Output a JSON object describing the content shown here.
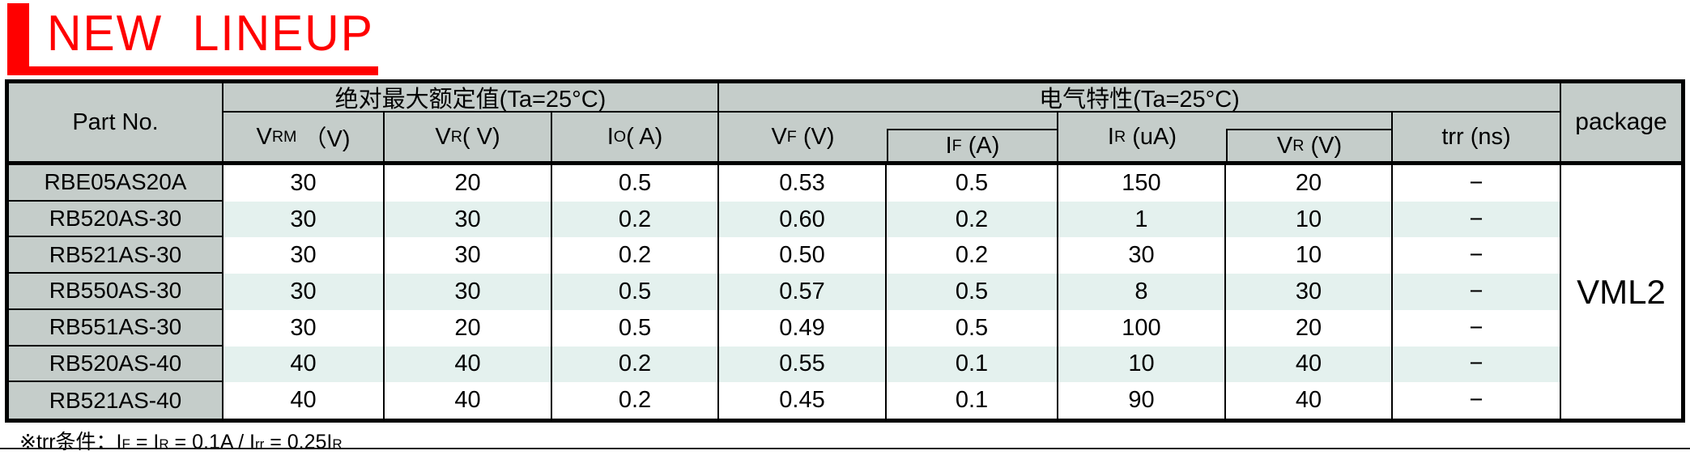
{
  "title": {
    "text": "NEW  LINEUP"
  },
  "table": {
    "part_no_label": "Part No.",
    "group_headers": {
      "abs_max": "绝对最大额定值(Ta=25°C)",
      "elec": "电气特性(Ta=25°C)"
    },
    "package_label": "package",
    "package_value": "VML2",
    "columns": [
      {
        "base": "V",
        "sub": "RM",
        "unit": " （V)"
      },
      {
        "base": "V",
        "sub": "R",
        "unit": "( V)"
      },
      {
        "base": "I",
        "sub": "O",
        "unit": "( A)"
      },
      {
        "base": "V",
        "sub": "F",
        "unit": " (V)"
      },
      {
        "base": "I",
        "sub": "F",
        "unit": " (A)"
      },
      {
        "base": "I",
        "sub": "R",
        "unit": " (uA)"
      },
      {
        "base": "V",
        "sub": "R",
        "unit": " (V)"
      },
      {
        "base": "trr",
        "sub": "",
        "unit": " (ns)"
      }
    ],
    "rows": [
      {
        "part": "RBE05AS20A",
        "vrm": "30",
        "vr": "20",
        "io": "0.5",
        "vf": "0.53",
        "if": "0.5",
        "ir": "150",
        "vr2": "20",
        "trr": "−"
      },
      {
        "part": "RB520AS-30",
        "vrm": "30",
        "vr": "30",
        "io": "0.2",
        "vf": "0.60",
        "if": "0.2",
        "ir": "1",
        "vr2": "10",
        "trr": "−"
      },
      {
        "part": "RB521AS-30",
        "vrm": "30",
        "vr": "30",
        "io": "0.2",
        "vf": "0.50",
        "if": "0.2",
        "ir": "30",
        "vr2": "10",
        "trr": "−"
      },
      {
        "part": "RB550AS-30",
        "vrm": "30",
        "vr": "30",
        "io": "0.5",
        "vf": "0.57",
        "if": "0.5",
        "ir": "8",
        "vr2": "30",
        "trr": "−"
      },
      {
        "part": "RB551AS-30",
        "vrm": "30",
        "vr": "20",
        "io": "0.5",
        "vf": "0.49",
        "if": "0.5",
        "ir": "100",
        "vr2": "20",
        "trr": "−"
      },
      {
        "part": "RB520AS-40",
        "vrm": "40",
        "vr": "40",
        "io": "0.2",
        "vf": "0.55",
        "if": "0.1",
        "ir": "10",
        "vr2": "40",
        "trr": "−"
      },
      {
        "part": "RB521AS-40",
        "vrm": "40",
        "vr": "40",
        "io": "0.2",
        "vf": "0.45",
        "if": "0.1",
        "ir": "90",
        "vr2": "40",
        "trr": "−"
      }
    ],
    "banded_rows": [
      1,
      3,
      5
    ]
  },
  "footnote": {
    "segments": [
      {
        "text": "※trr条件：I",
        "sub": false
      },
      {
        "text": "F",
        "sub": true
      },
      {
        "text": " = I",
        "sub": false
      },
      {
        "text": "R",
        "sub": true
      },
      {
        "text": " = 0.1A / I",
        "sub": false
      },
      {
        "text": "rr",
        "sub": true
      },
      {
        "text": " = 0.25I",
        "sub": false
      },
      {
        "text": "R",
        "sub": true
      }
    ]
  },
  "colors": {
    "accent_red": "#ff0000",
    "header_gray": "#c5cdca",
    "band_mint": "#e4f1ee",
    "border_black": "#000000"
  }
}
